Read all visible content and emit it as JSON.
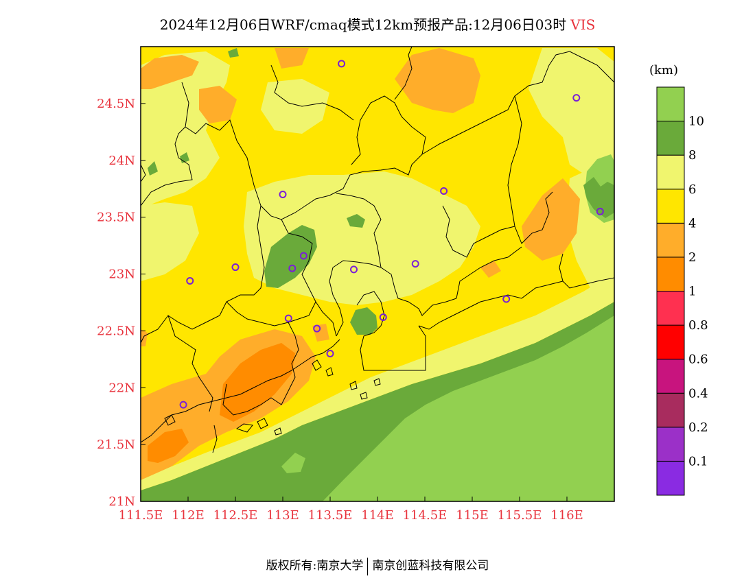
{
  "title": {
    "text": "2024年12月06日WRF/cmaq模式12km预报产品:12月06日03时",
    "variable": "VIS"
  },
  "map": {
    "lon_range": [
      111.5,
      116.5
    ],
    "lat_range": [
      21.0,
      25.0
    ],
    "x_ticks": [
      {
        "lon": 111.5,
        "label": "111.5E"
      },
      {
        "lon": 112.0,
        "label": "112E"
      },
      {
        "lon": 112.5,
        "label": "112.5E"
      },
      {
        "lon": 113.0,
        "label": "113E"
      },
      {
        "lon": 113.5,
        "label": "113.5E"
      },
      {
        "lon": 114.0,
        "label": "114E"
      },
      {
        "lon": 114.5,
        "label": "114.5E"
      },
      {
        "lon": 115.0,
        "label": "115E"
      },
      {
        "lon": 115.5,
        "label": "115.5E"
      },
      {
        "lon": 116.0,
        "label": "116E"
      }
    ],
    "y_ticks": [
      {
        "lat": 21.0,
        "label": "21N"
      },
      {
        "lat": 21.5,
        "label": "21.5N"
      },
      {
        "lat": 22.0,
        "label": "22N"
      },
      {
        "lat": 22.5,
        "label": "22.5N"
      },
      {
        "lat": 23.0,
        "label": "23N"
      },
      {
        "lat": 23.5,
        "label": "23.5N"
      },
      {
        "lat": 24.0,
        "label": "24N"
      },
      {
        "lat": 24.5,
        "label": "24.5N"
      }
    ],
    "stations": [
      {
        "lon": 113.62,
        "lat": 24.85
      },
      {
        "lon": 116.1,
        "lat": 24.55
      },
      {
        "lon": 113.0,
        "lat": 23.7
      },
      {
        "lon": 114.7,
        "lat": 23.73
      },
      {
        "lon": 116.35,
        "lat": 23.55
      },
      {
        "lon": 113.22,
        "lat": 23.16
      },
      {
        "lon": 112.5,
        "lat": 23.06
      },
      {
        "lon": 113.1,
        "lat": 23.05
      },
      {
        "lon": 113.75,
        "lat": 23.04
      },
      {
        "lon": 114.4,
        "lat": 23.09
      },
      {
        "lon": 112.02,
        "lat": 22.94
      },
      {
        "lon": 115.36,
        "lat": 22.78
      },
      {
        "lon": 113.06,
        "lat": 22.61
      },
      {
        "lon": 114.06,
        "lat": 22.62
      },
      {
        "lon": 113.36,
        "lat": 22.52
      },
      {
        "lon": 113.5,
        "lat": 22.3
      },
      {
        "lon": 111.95,
        "lat": 21.85
      }
    ]
  },
  "colorbar": {
    "unit": "(km)",
    "colors": [
      "#8a2be2",
      "#9b30c8",
      "#a82c5e",
      "#c8147e",
      "#ff0000",
      "#ff3050",
      "#ff8c00",
      "#ffad2a",
      "#ffe600",
      "#f0f56e",
      "#6aaa3a",
      "#92d050"
    ],
    "tick_labels": [
      "0.1",
      "0.2",
      "0.4",
      "0.6",
      "0.8",
      "1",
      "2",
      "4",
      "6",
      "8",
      "10"
    ],
    "legend_colors": {
      "sea": "#92d050",
      "coastal_band": "#6aaa3a",
      "light_yellow": "#f0f56e",
      "yellow": "#ffe600",
      "light_orange": "#ffad2a",
      "orange": "#ff8c00",
      "station": "#7a1fd6"
    }
  },
  "footer": {
    "left": "版权所有:南京大学",
    "right": "南京创蓝科技有限公司"
  }
}
